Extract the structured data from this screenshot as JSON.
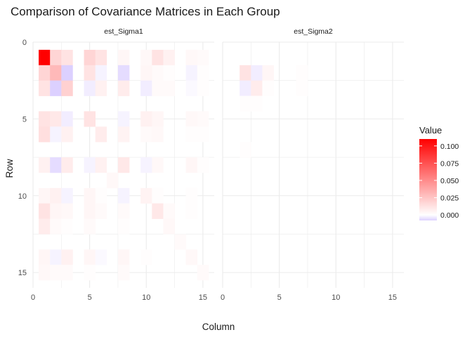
{
  "chart_data": {
    "type": "heatmap",
    "title": "Comparison of Covariance Matrices in Each Group",
    "xlabel": "Column",
    "ylabel": "Row",
    "facets": [
      "est_Sigma1",
      "est_Sigma2"
    ],
    "x_ticks": [
      0,
      5,
      10,
      15
    ],
    "y_ticks": [
      0,
      5,
      10,
      15
    ],
    "xlim": [
      0,
      16
    ],
    "ylim": [
      0,
      16
    ],
    "y_reversed": true,
    "grid": true,
    "legend": {
      "title": "Value",
      "position": "right",
      "ticks": [
        0.1,
        0.075,
        0.05,
        0.025,
        0.0
      ],
      "tick_labels": [
        "0.100",
        "0.075",
        "0.050",
        "0.025",
        "0.000"
      ],
      "range": [
        -0.008,
        0.11
      ],
      "low_color": "#DCD0FF",
      "mid_color": "#FFFFFF",
      "high_color": "#FF0000"
    },
    "panels": [
      {
        "name": "est_Sigma1",
        "cells": [
          [
            1,
            1,
            0.11
          ],
          [
            1,
            2,
            0.018
          ],
          [
            1,
            3,
            0.012
          ],
          [
            1,
            5,
            0.018
          ],
          [
            1,
            6,
            0.012
          ],
          [
            1,
            8,
            0.004
          ],
          [
            1,
            10,
            0.003
          ],
          [
            1,
            11,
            0.012
          ],
          [
            1,
            12,
            0.006
          ],
          [
            1,
            14,
            0.003
          ],
          [
            1,
            15,
            0.002
          ],
          [
            2,
            1,
            0.018
          ],
          [
            2,
            2,
            0.03
          ],
          [
            2,
            3,
            -0.008
          ],
          [
            2,
            5,
            0.012
          ],
          [
            2,
            6,
            -0.002
          ],
          [
            2,
            8,
            -0.006
          ],
          [
            2,
            10,
            0.004
          ],
          [
            2,
            11,
            0.002
          ],
          [
            2,
            12,
            0.001
          ],
          [
            2,
            14,
            -0.002
          ],
          [
            2,
            15,
            0.001
          ],
          [
            3,
            1,
            0.012
          ],
          [
            3,
            2,
            -0.008
          ],
          [
            3,
            3,
            0.02
          ],
          [
            3,
            5,
            -0.003
          ],
          [
            3,
            6,
            0.006
          ],
          [
            3,
            8,
            0.008
          ],
          [
            3,
            10,
            -0.003
          ],
          [
            3,
            11,
            0.002
          ],
          [
            3,
            12,
            0.002
          ],
          [
            3,
            14,
            -0.001
          ],
          [
            3,
            15,
            0.001
          ],
          [
            5,
            1,
            0.012
          ],
          [
            5,
            2,
            0.01
          ],
          [
            5,
            3,
            -0.003
          ],
          [
            5,
            5,
            0.012
          ],
          [
            5,
            8,
            -0.002
          ],
          [
            5,
            10,
            0.006
          ],
          [
            5,
            11,
            0.004
          ],
          [
            5,
            14,
            0.003
          ],
          [
            5,
            15,
            0.002
          ],
          [
            6,
            1,
            0.014
          ],
          [
            6,
            2,
            -0.002
          ],
          [
            6,
            3,
            0.006
          ],
          [
            6,
            6,
            0.008
          ],
          [
            6,
            8,
            0.005
          ],
          [
            6,
            10,
            0.002
          ],
          [
            6,
            11,
            0.003
          ],
          [
            6,
            14,
            0.001
          ],
          [
            6,
            15,
            0.001
          ],
          [
            8,
            1,
            0.006
          ],
          [
            8,
            2,
            -0.006
          ],
          [
            8,
            3,
            0.008
          ],
          [
            8,
            5,
            -0.002
          ],
          [
            8,
            6,
            0.006
          ],
          [
            8,
            8,
            0.01
          ],
          [
            8,
            10,
            -0.002
          ],
          [
            8,
            11,
            0.003
          ],
          [
            8,
            14,
            0.004
          ],
          [
            8,
            15,
            0.001
          ],
          [
            9,
            7,
            0.003
          ],
          [
            10,
            1,
            0.004
          ],
          [
            10,
            2,
            0.006
          ],
          [
            10,
            3,
            -0.002
          ],
          [
            10,
            5,
            0.004
          ],
          [
            10,
            6,
            0.001
          ],
          [
            10,
            8,
            -0.002
          ],
          [
            10,
            10,
            0.005
          ],
          [
            10,
            11,
            0.001
          ],
          [
            10,
            14,
            0.001
          ],
          [
            11,
            1,
            0.012
          ],
          [
            11,
            2,
            0.004
          ],
          [
            11,
            3,
            0.003
          ],
          [
            11,
            5,
            0.004
          ],
          [
            11,
            6,
            0.002
          ],
          [
            11,
            8,
            0.002
          ],
          [
            11,
            11,
            0.01
          ],
          [
            11,
            12,
            0.002
          ],
          [
            11,
            14,
            0.001
          ],
          [
            12,
            1,
            0.008
          ],
          [
            12,
            2,
            0.002
          ],
          [
            12,
            3,
            0.001
          ],
          [
            12,
            5,
            0.002
          ],
          [
            12,
            8,
            0.001
          ],
          [
            12,
            12,
            0.003
          ],
          [
            13,
            13,
            0.002
          ],
          [
            14,
            1,
            0.004
          ],
          [
            14,
            2,
            -0.002
          ],
          [
            14,
            3,
            0.006
          ],
          [
            14,
            5,
            0.004
          ],
          [
            14,
            6,
            -0.001
          ],
          [
            14,
            8,
            0.004
          ],
          [
            14,
            10,
            0.001
          ],
          [
            14,
            14,
            0.003
          ],
          [
            15,
            1,
            0.003
          ],
          [
            15,
            2,
            0.002
          ],
          [
            15,
            3,
            0.002
          ],
          [
            15,
            5,
            0.001
          ],
          [
            15,
            8,
            0.002
          ],
          [
            15,
            15,
            0.002
          ]
        ]
      },
      {
        "name": "est_Sigma2",
        "cells": [
          [
            2,
            2,
            0.012
          ],
          [
            2,
            3,
            -0.003
          ],
          [
            2,
            4,
            0.004
          ],
          [
            2,
            7,
            0.001
          ],
          [
            3,
            2,
            -0.003
          ],
          [
            3,
            3,
            0.008
          ],
          [
            3,
            4,
            0.001
          ],
          [
            3,
            7,
            0.001
          ],
          [
            4,
            2,
            0.001
          ],
          [
            4,
            3,
            0.001
          ],
          [
            7,
            2,
            0.001
          ]
        ]
      }
    ]
  }
}
